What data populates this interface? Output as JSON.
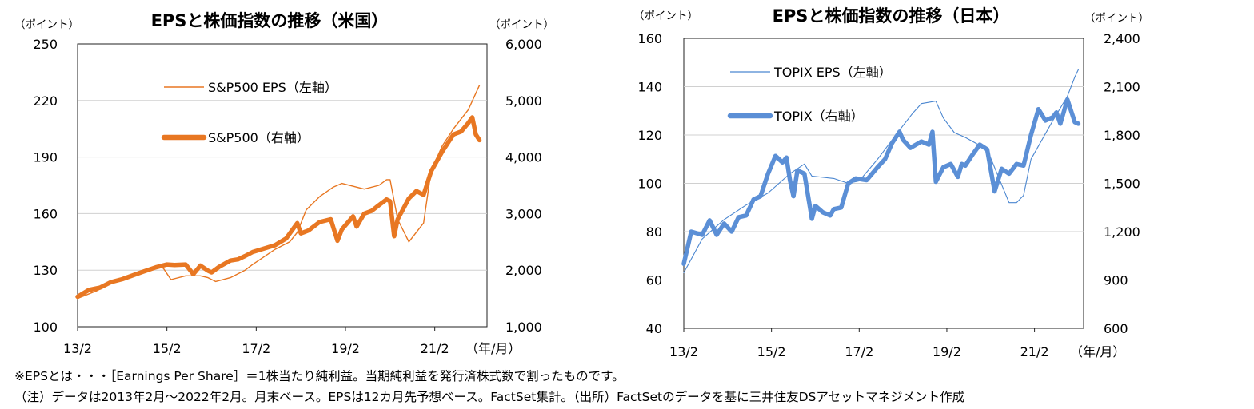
{
  "chart_data": [
    {
      "type": "line",
      "title": "EPSと株価指数の推移（米国）",
      "left_unit": "（ポイント）",
      "right_unit": "（ポイント）",
      "x_unit": "（年/月）",
      "x_ticks": [
        "13/2",
        "15/2",
        "17/2",
        "19/2",
        "21/2"
      ],
      "y_left": {
        "min": 100,
        "max": 250,
        "ticks": [
          "100",
          "130",
          "160",
          "190",
          "220",
          "250"
        ]
      },
      "y_right": {
        "min": 1000,
        "max": 6000,
        "ticks": [
          "1,000",
          "2,000",
          "3,000",
          "4,000",
          "5,000",
          "6,000"
        ]
      },
      "colors": {
        "eps": "#e87722",
        "index": "#e87722"
      },
      "series": [
        {
          "name": "S&P500 EPS（左軸）",
          "axis": "left",
          "x": [
            2013.08,
            2013.5,
            2014.0,
            2014.5,
            2014.83,
            2015.0,
            2015.17,
            2015.5,
            2015.83,
            2016.0,
            2016.17,
            2016.5,
            2016.83,
            2017.0,
            2017.25,
            2017.5,
            2017.83,
            2018.0,
            2018.2,
            2018.5,
            2018.8,
            2019.0,
            2019.5,
            2019.83,
            2020.0,
            2020.08,
            2020.25,
            2020.5,
            2020.83,
            2021.0,
            2021.25,
            2021.5,
            2021.83,
            2022.08
          ],
          "values": [
            115,
            119,
            125,
            129,
            132,
            131,
            125,
            127,
            127,
            126,
            124,
            126,
            130,
            133,
            137,
            141,
            145,
            150,
            162,
            169,
            174,
            176,
            173,
            175,
            178,
            178,
            157,
            145,
            155,
            183,
            196,
            205,
            215,
            228
          ]
        },
        {
          "name": "S&P500（右軸）",
          "axis": "right",
          "x": [
            2013.08,
            2013.33,
            2013.58,
            2013.83,
            2014.08,
            2014.5,
            2014.83,
            2015.08,
            2015.25,
            2015.5,
            2015.67,
            2015.83,
            2016.0,
            2016.08,
            2016.25,
            2016.5,
            2016.67,
            2016.83,
            2017.0,
            2017.25,
            2017.5,
            2017.75,
            2018.0,
            2018.08,
            2018.25,
            2018.5,
            2018.75,
            2018.9,
            2019.0,
            2019.25,
            2019.33,
            2019.5,
            2019.67,
            2019.83,
            2020.0,
            2020.08,
            2020.17,
            2020.25,
            2020.5,
            2020.67,
            2020.83,
            2021.0,
            2021.25,
            2021.5,
            2021.67,
            2021.83,
            2021.92,
            2022.0,
            2022.08
          ],
          "values": [
            1530,
            1650,
            1690,
            1790,
            1840,
            1960,
            2050,
            2100,
            2090,
            2100,
            1930,
            2080,
            1990,
            1960,
            2060,
            2170,
            2190,
            2250,
            2320,
            2380,
            2440,
            2560,
            2830,
            2650,
            2700,
            2850,
            2900,
            2520,
            2720,
            2950,
            2770,
            3000,
            3050,
            3150,
            3250,
            3220,
            2600,
            2900,
            3270,
            3400,
            3330,
            3750,
            4100,
            4400,
            4450,
            4600,
            4700,
            4400,
            4300
          ]
        }
      ]
    },
    {
      "type": "line",
      "title": "EPSと株価指数の推移（日本）",
      "left_unit": "（ポイント）",
      "right_unit": "（ポイント）",
      "x_unit": "（年/月）",
      "x_ticks": [
        "13/2",
        "15/2",
        "17/2",
        "19/2",
        "21/2"
      ],
      "y_left": {
        "min": 40,
        "max": 160,
        "ticks": [
          "40",
          "60",
          "80",
          "100",
          "120",
          "140",
          "160"
        ]
      },
      "y_right": {
        "min": 600,
        "max": 2400,
        "ticks": [
          "600",
          "900",
          "1,200",
          "1,500",
          "1,800",
          "2,100",
          "2,400"
        ]
      },
      "colors": {
        "eps": "#4a86d0",
        "index": "#5b8fd6"
      },
      "series": [
        {
          "name": "TOPIX  EPS（左軸）",
          "axis": "left",
          "x": [
            2013.08,
            2013.5,
            2014.0,
            2014.5,
            2015.0,
            2015.5,
            2015.83,
            2016.0,
            2016.5,
            2016.83,
            2017.08,
            2017.5,
            2018.0,
            2018.3,
            2018.5,
            2018.83,
            2019.0,
            2019.25,
            2019.5,
            2020.0,
            2020.25,
            2020.5,
            2020.67,
            2020.83,
            2021.0,
            2021.5,
            2021.83,
            2022.0,
            2022.08
          ],
          "values": [
            63,
            77,
            85,
            91,
            96,
            104,
            108,
            103,
            102,
            100,
            101,
            110,
            122,
            129,
            133,
            134,
            127,
            121,
            119,
            114,
            103,
            92,
            92,
            95,
            110,
            126,
            136,
            144,
            147
          ]
        },
        {
          "name": "TOPIX（右軸）",
          "axis": "right",
          "x": [
            2013.08,
            2013.25,
            2013.5,
            2013.67,
            2013.83,
            2014.0,
            2014.17,
            2014.33,
            2014.5,
            2014.67,
            2014.83,
            2015.0,
            2015.17,
            2015.33,
            2015.42,
            2015.5,
            2015.58,
            2015.67,
            2015.83,
            2016.0,
            2016.08,
            2016.25,
            2016.42,
            2016.5,
            2016.67,
            2016.83,
            2017.0,
            2017.25,
            2017.5,
            2017.67,
            2017.83,
            2018.0,
            2018.08,
            2018.25,
            2018.5,
            2018.67,
            2018.75,
            2018.83,
            2019.0,
            2019.17,
            2019.33,
            2019.42,
            2019.5,
            2019.67,
            2019.83,
            2020.0,
            2020.17,
            2020.33,
            2020.5,
            2020.67,
            2020.83,
            2021.0,
            2021.17,
            2021.33,
            2021.5,
            2021.58,
            2021.67,
            2021.83,
            2022.0,
            2022.08
          ],
          "values": [
            1000,
            1200,
            1180,
            1270,
            1180,
            1250,
            1200,
            1290,
            1300,
            1400,
            1420,
            1560,
            1670,
            1630,
            1660,
            1520,
            1420,
            1580,
            1560,
            1280,
            1360,
            1320,
            1300,
            1340,
            1350,
            1500,
            1530,
            1520,
            1600,
            1650,
            1750,
            1820,
            1770,
            1720,
            1760,
            1740,
            1820,
            1510,
            1600,
            1620,
            1540,
            1620,
            1610,
            1680,
            1740,
            1710,
            1450,
            1590,
            1560,
            1620,
            1610,
            1800,
            1960,
            1890,
            1910,
            1940,
            1870,
            2020,
            1880,
            1870
          ]
        }
      ]
    }
  ],
  "notes": [
    "※EPSとは・・・［Earnings Per Share］＝1株当たり純利益。当期純利益を発行済株式数で割ったものです。",
    "（注）データは2013年2月～2022年2月。月末ベース。EPSは12カ月先予想ベース。FactSet集計。（出所）FactSetのデータを基に三井住友DSアセットマネジメント作成"
  ]
}
